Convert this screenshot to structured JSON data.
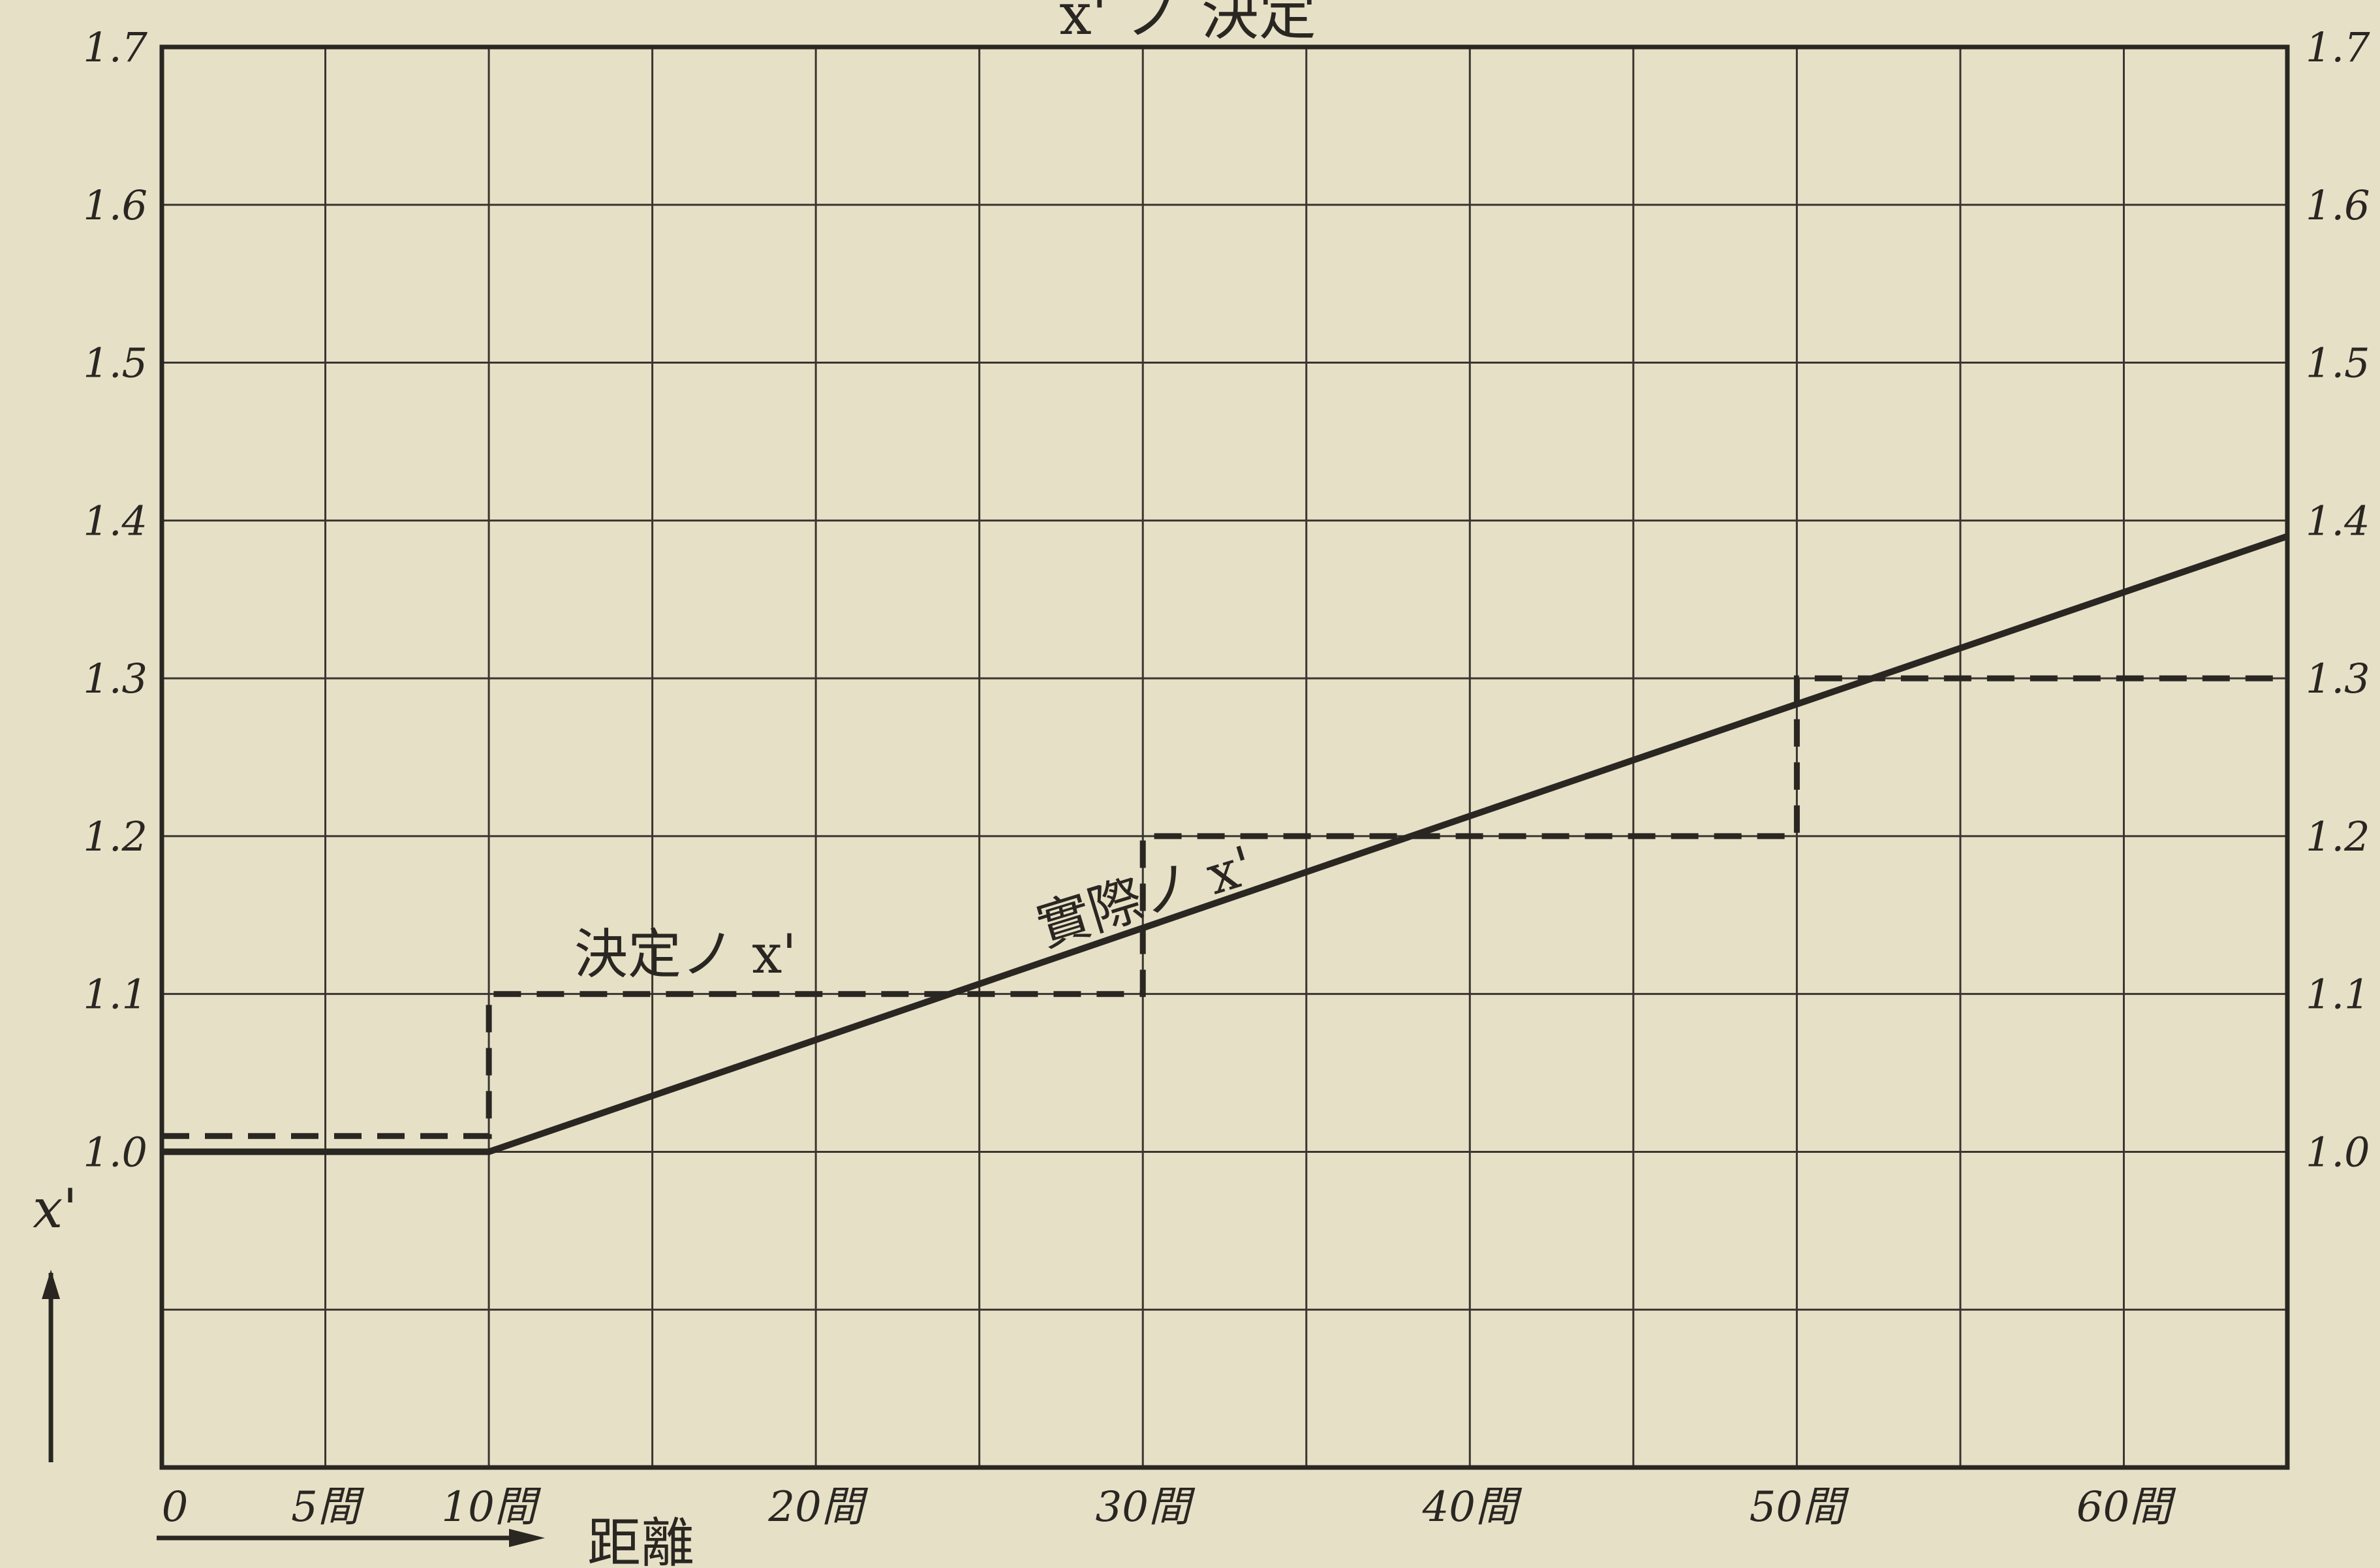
{
  "chart_data": {
    "type": "line",
    "title": "x' ノ 決定",
    "xlabel": "距離",
    "ylabel": "x'",
    "xlim": [
      0,
      65
    ],
    "ylim": [
      0.8,
      1.7
    ],
    "grid": true,
    "x_ticks": [
      {
        "value": 0,
        "label": "0"
      },
      {
        "value": 5,
        "label": "5間"
      },
      {
        "value": 10,
        "label": "10間"
      },
      {
        "value": 20,
        "label": "20間"
      },
      {
        "value": 30,
        "label": "30間"
      },
      {
        "value": 40,
        "label": "40間"
      },
      {
        "value": 50,
        "label": "50間"
      },
      {
        "value": 60,
        "label": "60間"
      }
    ],
    "y_ticks": [
      {
        "value": 1.0,
        "label": "1.0"
      },
      {
        "value": 1.1,
        "label": "1.1"
      },
      {
        "value": 1.2,
        "label": "1.2"
      },
      {
        "value": 1.3,
        "label": "1.3"
      },
      {
        "value": 1.4,
        "label": "1.4"
      },
      {
        "value": 1.5,
        "label": "1.5"
      },
      {
        "value": 1.6,
        "label": "1.6"
      },
      {
        "value": 1.7,
        "label": "1.7"
      }
    ],
    "series": [
      {
        "name": "實際ノ x'",
        "style": "solid",
        "x": [
          0,
          10,
          65
        ],
        "y": [
          1.0,
          1.0,
          1.39
        ]
      },
      {
        "name": "決定ノ x'",
        "style": "dashed",
        "x": [
          0,
          10,
          10,
          30,
          30,
          50,
          50,
          65
        ],
        "y": [
          1.01,
          1.01,
          1.1,
          1.1,
          1.2,
          1.2,
          1.3,
          1.3
        ]
      }
    ]
  },
  "colors": {
    "paper": "#e6e1c6",
    "ink": "#2a2622",
    "grid": "#3a3530"
  }
}
